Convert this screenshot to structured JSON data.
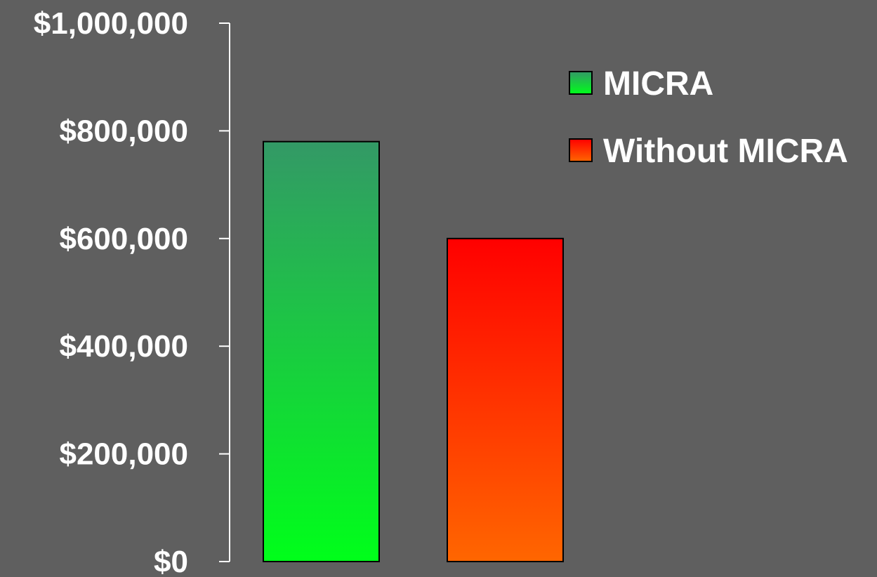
{
  "chart_data": {
    "type": "bar",
    "title": "",
    "xlabel": "",
    "ylabel": "",
    "ylim": [
      0,
      1000000
    ],
    "yticks": [
      0,
      200000,
      400000,
      600000,
      800000,
      1000000
    ],
    "ytick_labels": [
      "$0",
      "$200,000",
      "$400,000",
      "$600,000",
      "$800,000",
      "$1,000,000"
    ],
    "grid": false,
    "legend_position": "top-right",
    "series": [
      {
        "name": "MICRA",
        "values": [
          780000
        ],
        "color_top": "#339966",
        "color_bottom": "#00ff1a"
      },
      {
        "name": "Without MICRA",
        "values": [
          600000
        ],
        "color_top": "#ff0000",
        "color_bottom": "#ff6600"
      }
    ]
  },
  "theme": {
    "background": "#5f5f5f",
    "axis_color": "#ffffff",
    "text_color": "#ffffff",
    "bar_outline": "#000000"
  }
}
